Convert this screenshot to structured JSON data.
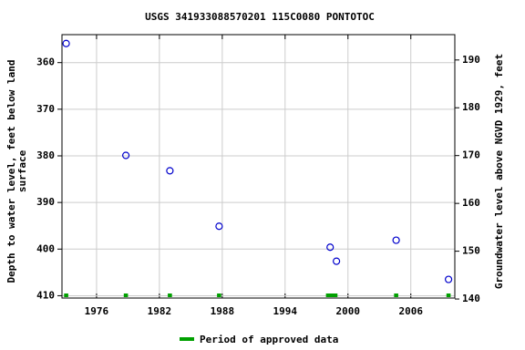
{
  "chart_data": {
    "type": "scatter",
    "title": "USGS 341933088570201 115C0080  PONTOTOC",
    "y_label": [
      "Depth to water level, feet below land",
      "surface"
    ],
    "y2_label": "Groundwater level above NGVD 1929, feet",
    "x": [
      1973.1,
      1978.8,
      1983.0,
      1987.7,
      1998.3,
      1998.9,
      2004.6,
      2009.6
    ],
    "values": [
      355.9,
      379.9,
      383.2,
      395.1,
      399.6,
      402.6,
      398.1,
      406.5
    ],
    "color": "#0000cc",
    "xlim": [
      1972.7,
      2010.2
    ],
    "xticks": [
      1976,
      1982,
      1988,
      1994,
      2000,
      2006
    ],
    "ylim": [
      410.5,
      354
    ],
    "yticks": [
      360,
      370,
      380,
      390,
      400,
      410
    ],
    "y2lim": [
      140.2,
      195.3
    ],
    "y2ticks": [
      140,
      150,
      160,
      170,
      180,
      190
    ],
    "grid": true,
    "approved_periods": {
      "name": "Period of approved data",
      "color": "#00a000",
      "spans": [
        [
          1972.9,
          1973.3
        ],
        [
          1978.6,
          1979.0
        ],
        [
          1982.8,
          1983.2
        ],
        [
          1987.5,
          1987.9
        ],
        [
          1997.9,
          1999.0
        ],
        [
          2004.4,
          2004.8
        ],
        [
          2009.4,
          2009.8
        ]
      ]
    }
  }
}
